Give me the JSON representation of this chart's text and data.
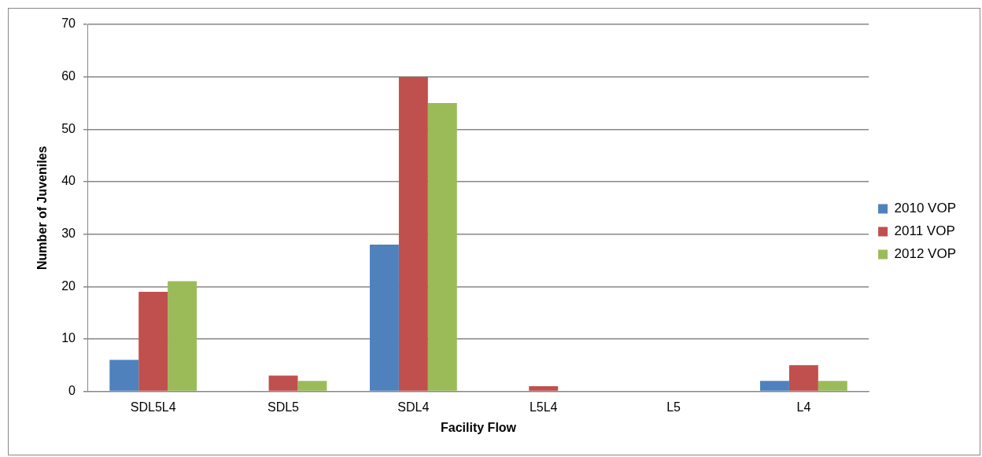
{
  "chart_data": {
    "type": "bar",
    "xlabel": "Facility Flow",
    "ylabel": "Number of Juveniles",
    "categories": [
      "SDL5L4",
      "SDL5",
      "SDL4",
      "L5L4",
      "L5",
      "L4"
    ],
    "series": [
      {
        "name": "2010 VOP",
        "color": "#4f81bd",
        "values": [
          6,
          0,
          28,
          0,
          0,
          2
        ]
      },
      {
        "name": "2011 VOP",
        "color": "#c0504d",
        "values": [
          19,
          3,
          60,
          1,
          0,
          5
        ]
      },
      {
        "name": "2012 VOP",
        "color": "#9bbb59",
        "values": [
          21,
          2,
          55,
          0,
          0,
          2
        ]
      }
    ],
    "ylim": [
      0,
      70
    ],
    "yticks": [
      0,
      10,
      20,
      30,
      40,
      50,
      60,
      70
    ],
    "grid": "y",
    "legend": "right"
  }
}
